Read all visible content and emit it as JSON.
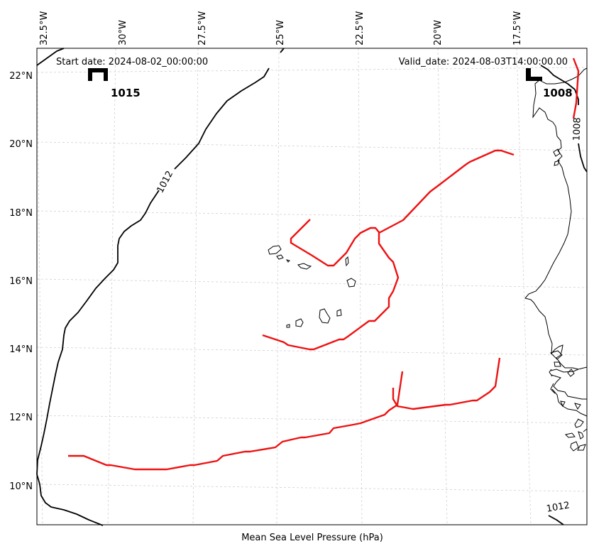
{
  "map": {
    "start_date": "Start date: 2024-08-02_00:00:00",
    "valid_date": "Valid_date: 2024-08-03T14:00:00.00",
    "caption": "Mean Sea Level Pressure (hPa)",
    "lon_ticks": [
      "32.5°W",
      "30°W",
      "27.5°W",
      "25°W",
      "22.5°W",
      "20°W",
      "17.5°W"
    ],
    "lat_ticks": [
      "22°N",
      "20°N",
      "18°N",
      "16°N",
      "14°N",
      "12°N",
      "10°N"
    ],
    "high_center": {
      "symbol": "H",
      "value": "1015"
    },
    "low_center": {
      "symbol": "L",
      "value": "1008"
    },
    "isobar_labels": [
      "1012",
      "1008",
      "1012"
    ],
    "colors": {
      "isobar": "#000000",
      "trough": "#ee1111",
      "grid": "#cccccc"
    }
  }
}
